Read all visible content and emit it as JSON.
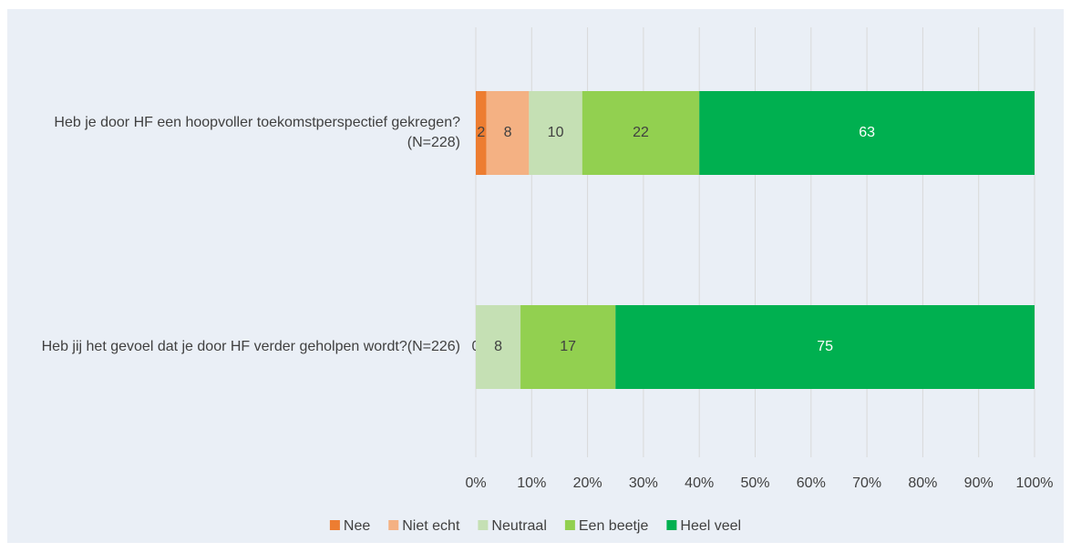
{
  "chart_data": {
    "type": "stacked-bar-100",
    "categories": [
      "Heb je door HF een hoopvoller toekomstperspectief gekregen? (N=228)",
      "Heb jij het gevoel dat je door HF verder geholpen wordt?(N=226)"
    ],
    "series": [
      {
        "name": "Nee",
        "color": "#ed7d31",
        "values": [
          2,
          0
        ]
      },
      {
        "name": "Niet echt",
        "color": "#f4b183",
        "values": [
          8,
          null
        ]
      },
      {
        "name": "Neutraal",
        "color": "#c5e0b4",
        "values": [
          10,
          8
        ]
      },
      {
        "name": "Een beetje",
        "color": "#92d050",
        "values": [
          22,
          17
        ]
      },
      {
        "name": "Heel veel",
        "color": "#00b050",
        "values": [
          63,
          75
        ]
      }
    ],
    "xlim": [
      0,
      100
    ],
    "xticks": [
      {
        "value": 0,
        "label": "0%"
      },
      {
        "value": 10,
        "label": "10%"
      },
      {
        "value": 20,
        "label": "20%"
      },
      {
        "value": 30,
        "label": "30%"
      },
      {
        "value": 40,
        "label": "40%"
      },
      {
        "value": 50,
        "label": "50%"
      },
      {
        "value": 60,
        "label": "60%"
      },
      {
        "value": 70,
        "label": "70%"
      },
      {
        "value": 80,
        "label": "80%"
      },
      {
        "value": 90,
        "label": "90%"
      },
      {
        "value": 100,
        "label": "100%"
      }
    ],
    "grid": true,
    "legend": "bottom"
  }
}
